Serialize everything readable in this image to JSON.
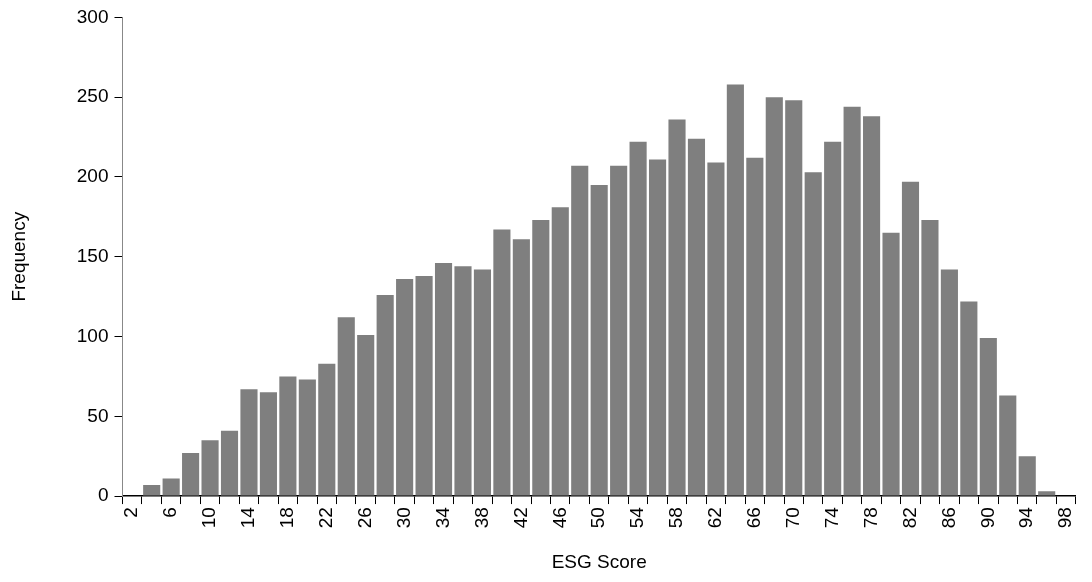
{
  "chart_data": {
    "type": "bar",
    "xlabel": "ESG Score",
    "ylabel": "Frequency",
    "categories": [
      "2",
      null,
      "6",
      null,
      "10",
      null,
      "14",
      null,
      "18",
      null,
      "22",
      null,
      "26",
      null,
      "30",
      null,
      "34",
      null,
      "38",
      null,
      "42",
      null,
      "46",
      null,
      "50",
      null,
      "54",
      null,
      "58",
      null,
      "62",
      null,
      "66",
      null,
      "70",
      null,
      "74",
      null,
      "78",
      null,
      "82",
      null,
      "86",
      null,
      "90",
      null,
      "94",
      null,
      "98"
    ],
    "values": [
      0,
      7,
      11,
      27,
      35,
      41,
      67,
      65,
      75,
      73,
      83,
      112,
      101,
      126,
      136,
      138,
      146,
      144,
      142,
      167,
      161,
      173,
      181,
      207,
      195,
      207,
      222,
      211,
      236,
      224,
      209,
      258,
      212,
      250,
      248,
      203,
      222,
      244,
      238,
      165,
      197,
      173,
      142,
      122,
      99,
      63,
      25,
      3,
      0
    ],
    "color": "#7f7f7f",
    "ylim": [
      0,
      300
    ],
    "yticks": [
      0,
      50,
      100,
      150,
      200,
      250,
      300
    ],
    "grid": false,
    "legend": false
  }
}
